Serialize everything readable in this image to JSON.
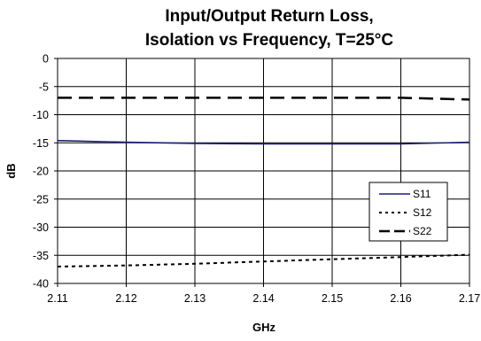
{
  "chart_data": {
    "type": "line",
    "title": [
      "Input/Output Return Loss,",
      "Isolation vs Frequency, T=25°C"
    ],
    "xlabel": "GHz",
    "ylabel": "dB",
    "xlim": [
      2.11,
      2.17
    ],
    "ylim": [
      -40,
      0
    ],
    "x_ticks": [
      2.11,
      2.12,
      2.13,
      2.14,
      2.15,
      2.16,
      2.17
    ],
    "x_tick_labels": [
      "2.11",
      "2.12",
      "2.13",
      "2.14",
      "2.15",
      "2.16",
      "2.17"
    ],
    "y_ticks": [
      0,
      -5,
      -10,
      -15,
      -20,
      -25,
      -30,
      -35,
      -40
    ],
    "y_tick_labels": [
      "0",
      "-5",
      "-10",
      "-15",
      "-20",
      "-25",
      "-30",
      "-35",
      "-40"
    ],
    "grid": true,
    "legend_position": "right",
    "series": [
      {
        "name": "S11",
        "color": "#1f1f7a",
        "dash": "solid",
        "x": [
          2.11,
          2.12,
          2.13,
          2.14,
          2.15,
          2.16,
          2.17
        ],
        "y": [
          -14.6,
          -14.9,
          -15.1,
          -15.2,
          -15.2,
          -15.2,
          -14.9
        ]
      },
      {
        "name": "S12",
        "color": "#000000",
        "dash": "dotted",
        "x": [
          2.11,
          2.12,
          2.13,
          2.14,
          2.15,
          2.16,
          2.17
        ],
        "y": [
          -37.0,
          -36.8,
          -36.5,
          -36.1,
          -35.7,
          -35.3,
          -34.9
        ]
      },
      {
        "name": "S22",
        "color": "#000000",
        "dash": "dashed",
        "x": [
          2.11,
          2.12,
          2.13,
          2.14,
          2.15,
          2.16,
          2.17
        ],
        "y": [
          -7.0,
          -7.0,
          -7.0,
          -7.0,
          -7.0,
          -7.0,
          -7.3
        ]
      }
    ]
  }
}
